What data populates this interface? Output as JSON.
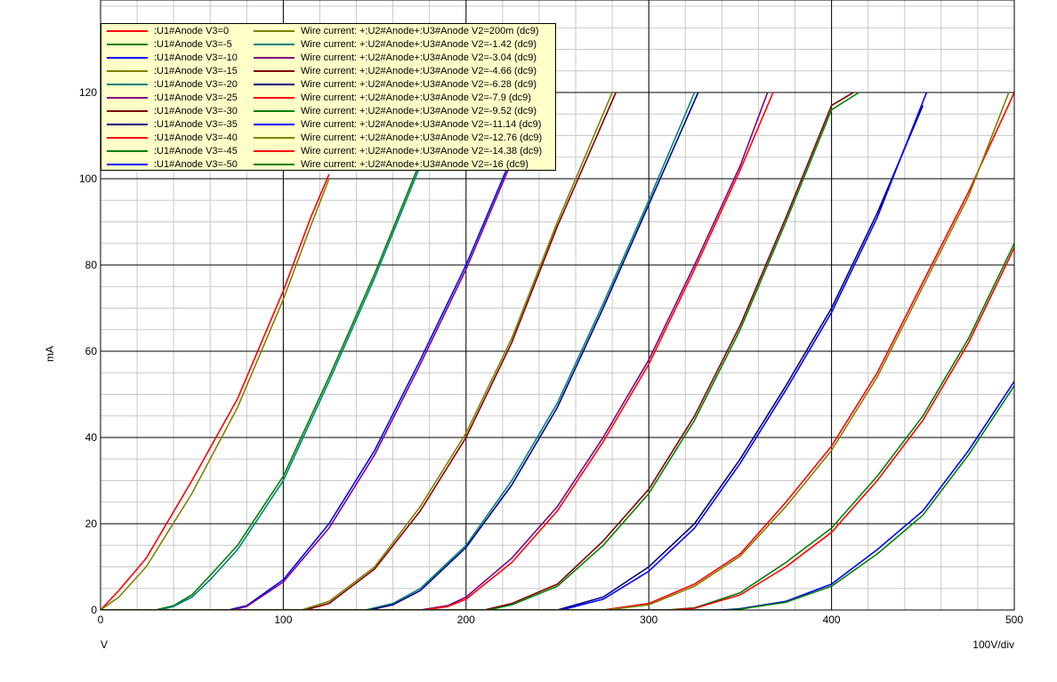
{
  "chart_data": {
    "type": "line",
    "xlabel": "V",
    "ylabel": "mA",
    "x_div_label": "100V/div",
    "xlim": [
      0,
      500
    ],
    "ylim": [
      0,
      120
    ],
    "xticks": [
      "0",
      "100",
      "200",
      "300",
      "400",
      "500"
    ],
    "yticks": [
      "0",
      "20",
      "40",
      "60",
      "80",
      "100",
      "120"
    ],
    "grid": true,
    "legend_position": "top-left",
    "series_left": [
      {
        "name": ":U1#Anode V3=0",
        "color": "#ff0000",
        "points": [
          [
            0,
            0
          ],
          [
            10,
            4.5
          ],
          [
            25,
            12
          ],
          [
            50,
            30
          ],
          [
            75,
            49
          ],
          [
            100,
            74
          ],
          [
            115,
            91
          ],
          [
            125,
            101
          ]
        ]
      },
      {
        "name": ":U1#Anode V3=-5",
        "color": "#008000",
        "points": [
          [
            30,
            0
          ],
          [
            40,
            1
          ],
          [
            50,
            3.5
          ],
          [
            60,
            8
          ],
          [
            75,
            15
          ],
          [
            100,
            31
          ],
          [
            125,
            54
          ],
          [
            150,
            78
          ],
          [
            175,
            104
          ]
        ]
      },
      {
        "name": ":U1#Anode V3=-10",
        "color": "#0000ff",
        "points": [
          [
            70,
            0
          ],
          [
            80,
            1
          ],
          [
            100,
            7
          ],
          [
            125,
            20
          ],
          [
            150,
            37
          ],
          [
            175,
            58
          ],
          [
            200,
            80
          ],
          [
            225,
            105
          ]
        ]
      },
      {
        "name": ":U1#Anode V3=-15",
        "color": "#808000",
        "points": [
          [
            110,
            0
          ],
          [
            125,
            2
          ],
          [
            150,
            10
          ],
          [
            175,
            24
          ],
          [
            200,
            41
          ],
          [
            225,
            63
          ],
          [
            250,
            90
          ],
          [
            280,
            120
          ]
        ]
      },
      {
        "name": ":U1#Anode V3=-20",
        "color": "#008080",
        "points": [
          [
            145,
            0
          ],
          [
            160,
            1.5
          ],
          [
            175,
            5
          ],
          [
            200,
            15
          ],
          [
            225,
            30
          ],
          [
            250,
            48
          ],
          [
            275,
            71
          ],
          [
            300,
            95
          ],
          [
            325,
            120
          ]
        ]
      },
      {
        "name": ":U1#Anode V3=-25",
        "color": "#800080",
        "points": [
          [
            175,
            0
          ],
          [
            190,
            1
          ],
          [
            200,
            3
          ],
          [
            225,
            12
          ],
          [
            250,
            24
          ],
          [
            275,
            40
          ],
          [
            300,
            58
          ],
          [
            325,
            80
          ],
          [
            350,
            103
          ],
          [
            365,
            120
          ]
        ]
      },
      {
        "name": ":U1#Anode V3=-30",
        "color": "#800000",
        "points": [
          [
            210,
            0
          ],
          [
            225,
            1.5
          ],
          [
            250,
            6
          ],
          [
            275,
            16
          ],
          [
            300,
            28
          ],
          [
            325,
            45
          ],
          [
            350,
            66
          ],
          [
            375,
            91
          ],
          [
            400,
            117
          ],
          [
            412,
            120
          ]
        ]
      },
      {
        "name": ":U1#Anode V3=-35",
        "color": "#000080",
        "points": [
          [
            250,
            0
          ],
          [
            275,
            3
          ],
          [
            300,
            10
          ],
          [
            325,
            20
          ],
          [
            350,
            35
          ],
          [
            375,
            52
          ],
          [
            400,
            70
          ],
          [
            425,
            92
          ],
          [
            450,
            117
          ]
        ]
      },
      {
        "name": ":U1#Anode V3=-40",
        "color": "#ff0000",
        "points": [
          [
            275,
            0
          ],
          [
            300,
            1.5
          ],
          [
            325,
            6
          ],
          [
            350,
            13
          ],
          [
            375,
            25
          ],
          [
            400,
            38
          ],
          [
            425,
            55
          ],
          [
            450,
            76
          ],
          [
            475,
            97
          ],
          [
            500,
            120
          ]
        ]
      },
      {
        "name": ":U1#Anode V3=-45",
        "color": "#008000",
        "points": [
          [
            310,
            0
          ],
          [
            325,
            0.5
          ],
          [
            350,
            4
          ],
          [
            375,
            11
          ],
          [
            400,
            19
          ],
          [
            425,
            31
          ],
          [
            450,
            45
          ],
          [
            475,
            63
          ],
          [
            500,
            85
          ]
        ]
      },
      {
        "name": ":U1#Anode V3=-50",
        "color": "#0000ff",
        "points": [
          [
            340,
            0
          ],
          [
            350,
            0.3
          ],
          [
            375,
            2
          ],
          [
            400,
            6
          ],
          [
            425,
            14
          ],
          [
            450,
            23
          ],
          [
            475,
            37
          ],
          [
            500,
            53
          ]
        ]
      }
    ],
    "series_right": [
      {
        "name": "Wire current: +:U2#Anode+:U3#Anode V2=200m (dc9)",
        "color": "#808000",
        "points": [
          [
            0,
            0
          ],
          [
            10,
            3
          ],
          [
            25,
            10
          ],
          [
            50,
            27
          ],
          [
            75,
            47
          ],
          [
            100,
            72
          ],
          [
            115,
            89
          ],
          [
            125,
            100
          ]
        ]
      },
      {
        "name": "Wire current: +:U2#Anode+:U3#Anode V2=-1.42 (dc9)",
        "color": "#008080",
        "points": [
          [
            32,
            0
          ],
          [
            40,
            0.8
          ],
          [
            50,
            3
          ],
          [
            60,
            7
          ],
          [
            75,
            14
          ],
          [
            100,
            30
          ],
          [
            125,
            53
          ],
          [
            150,
            77
          ],
          [
            175,
            103
          ]
        ]
      },
      {
        "name": "Wire current: +:U2#Anode+:U3#Anode V2=-3.04 (dc9)",
        "color": "#800080",
        "points": [
          [
            72,
            0
          ],
          [
            80,
            0.8
          ],
          [
            100,
            6.5
          ],
          [
            125,
            19
          ],
          [
            150,
            36
          ],
          [
            175,
            57
          ],
          [
            200,
            79
          ],
          [
            225,
            104
          ]
        ]
      },
      {
        "name": "Wire current: +:U2#Anode+:U3#Anode V2=-4.66 (dc9)",
        "color": "#800000",
        "points": [
          [
            112,
            0
          ],
          [
            125,
            1.5
          ],
          [
            150,
            9.5
          ],
          [
            175,
            23
          ],
          [
            200,
            40
          ],
          [
            225,
            62
          ],
          [
            250,
            89
          ],
          [
            282,
            120
          ]
        ]
      },
      {
        "name": "Wire current: +:U2#Anode+:U3#Anode V2=-6.28 (dc9)",
        "color": "#000080",
        "points": [
          [
            147,
            0
          ],
          [
            160,
            1.2
          ],
          [
            175,
            4.5
          ],
          [
            200,
            14.5
          ],
          [
            225,
            29
          ],
          [
            250,
            47
          ],
          [
            275,
            70
          ],
          [
            300,
            94
          ],
          [
            327,
            120
          ]
        ]
      },
      {
        "name": "Wire current: +:U2#Anode+:U3#Anode V2=-7.9 (dc9)",
        "color": "#ff0000",
        "points": [
          [
            177,
            0
          ],
          [
            190,
            0.8
          ],
          [
            200,
            2.5
          ],
          [
            225,
            11
          ],
          [
            250,
            23
          ],
          [
            275,
            39
          ],
          [
            300,
            57
          ],
          [
            325,
            79
          ],
          [
            350,
            102
          ],
          [
            368,
            120
          ]
        ]
      },
      {
        "name": "Wire current: +:U2#Anode+:U3#Anode V2=-9.52 (dc9)",
        "color": "#008000",
        "points": [
          [
            212,
            0
          ],
          [
            225,
            1.2
          ],
          [
            250,
            5.5
          ],
          [
            275,
            15
          ],
          [
            300,
            27
          ],
          [
            325,
            44
          ],
          [
            350,
            65
          ],
          [
            375,
            90
          ],
          [
            400,
            116
          ],
          [
            415,
            120
          ]
        ]
      },
      {
        "name": "Wire current: +:U2#Anode+:U3#Anode V2=-11.14 (dc9)",
        "color": "#0000ff",
        "points": [
          [
            252,
            0
          ],
          [
            275,
            2.5
          ],
          [
            300,
            9
          ],
          [
            325,
            19
          ],
          [
            350,
            34
          ],
          [
            375,
            51
          ],
          [
            400,
            69
          ],
          [
            425,
            91
          ],
          [
            452,
            120
          ]
        ]
      },
      {
        "name": "Wire current: +:U2#Anode+:U3#Anode V2=-12.76 (dc9)",
        "color": "#808000",
        "points": [
          [
            277,
            0
          ],
          [
            300,
            1.2
          ],
          [
            325,
            5.5
          ],
          [
            350,
            12.5
          ],
          [
            375,
            24
          ],
          [
            400,
            37
          ],
          [
            425,
            54
          ],
          [
            450,
            75
          ],
          [
            475,
            96
          ],
          [
            497,
            120
          ]
        ]
      },
      {
        "name": "Wire current: +:U2#Anode+:U3#Anode V2=-14.38 (dc9)",
        "color": "#ff0000",
        "points": [
          [
            312,
            0
          ],
          [
            325,
            0.4
          ],
          [
            350,
            3.5
          ],
          [
            375,
            10
          ],
          [
            400,
            18
          ],
          [
            425,
            30
          ],
          [
            450,
            44
          ],
          [
            475,
            62
          ],
          [
            500,
            84
          ]
        ]
      },
      {
        "name": "Wire current: +:U2#Anode+:U3#Anode V2=-16 (dc9)",
        "color": "#008000",
        "points": [
          [
            342,
            0
          ],
          [
            350,
            0.2
          ],
          [
            375,
            1.8
          ],
          [
            400,
            5.5
          ],
          [
            425,
            13
          ],
          [
            450,
            22
          ],
          [
            475,
            36
          ],
          [
            500,
            52
          ]
        ]
      }
    ]
  }
}
